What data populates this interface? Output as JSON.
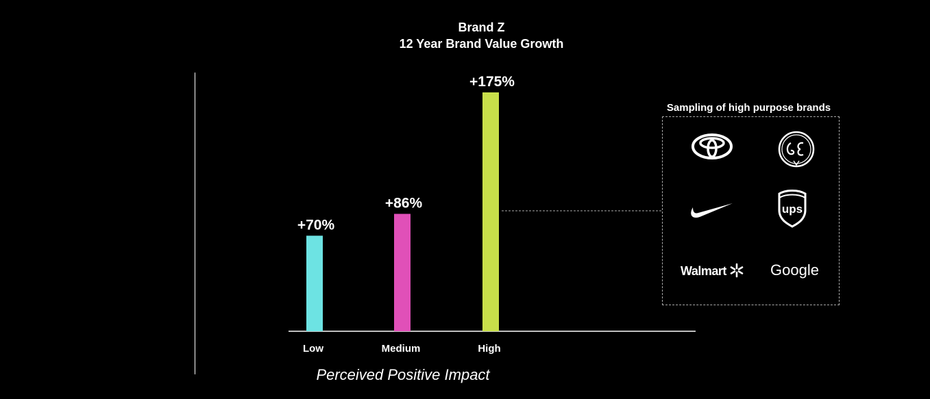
{
  "chart_data": {
    "type": "bar",
    "title": "Brand Z",
    "subtitle": "12 Year Brand Value Growth",
    "categories": [
      "Low",
      "Medium",
      "High"
    ],
    "values": [
      70,
      86,
      175
    ],
    "data_labels": [
      "+70%",
      "+86%",
      "+175%"
    ],
    "colors": [
      "#6de3e3",
      "#e050b8",
      "#c8df4a"
    ],
    "xlabel": "Perceived Positive Impact",
    "ylabel": "",
    "ylim": [
      0,
      180
    ],
    "grid": false
  },
  "panel": {
    "title": "Sampling of high purpose brands",
    "brands": [
      "Toyota",
      "GE",
      "Nike",
      "UPS",
      "Walmart",
      "Google"
    ],
    "walmart_text": "Walmart",
    "google_text": "Google",
    "ups_text": "ups"
  }
}
